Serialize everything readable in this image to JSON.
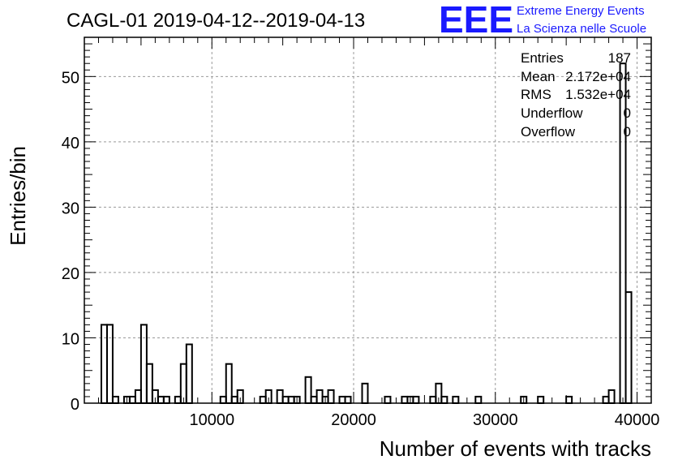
{
  "chart_data": {
    "type": "bar",
    "title": "CAGL-01 2019-04-12--2019-04-13",
    "xlabel": "Number of events with tracks",
    "ylabel": "Entries/bin",
    "xlim": [
      1000,
      41000
    ],
    "ylim": [
      0,
      56
    ],
    "bin_width": 400,
    "x_ticks": [
      10000,
      20000,
      30000,
      40000
    ],
    "y_ticks": [
      0,
      10,
      20,
      30,
      40,
      50
    ],
    "grid": true,
    "bins": [
      {
        "x": 2200,
        "y": 12
      },
      {
        "x": 2600,
        "y": 12
      },
      {
        "x": 3000,
        "y": 1
      },
      {
        "x": 3800,
        "y": 1
      },
      {
        "x": 4200,
        "y": 1
      },
      {
        "x": 4600,
        "y": 2
      },
      {
        "x": 5000,
        "y": 12
      },
      {
        "x": 5400,
        "y": 6
      },
      {
        "x": 5800,
        "y": 2
      },
      {
        "x": 6200,
        "y": 1
      },
      {
        "x": 6600,
        "y": 1
      },
      {
        "x": 7400,
        "y": 1
      },
      {
        "x": 7800,
        "y": 6
      },
      {
        "x": 8200,
        "y": 9
      },
      {
        "x": 10600,
        "y": 1
      },
      {
        "x": 11000,
        "y": 6
      },
      {
        "x": 11400,
        "y": 1
      },
      {
        "x": 11800,
        "y": 2
      },
      {
        "x": 13400,
        "y": 1
      },
      {
        "x": 13800,
        "y": 2
      },
      {
        "x": 14600,
        "y": 2
      },
      {
        "x": 15000,
        "y": 1
      },
      {
        "x": 15400,
        "y": 1
      },
      {
        "x": 15800,
        "y": 1
      },
      {
        "x": 16600,
        "y": 4
      },
      {
        "x": 17000,
        "y": 1
      },
      {
        "x": 17400,
        "y": 2
      },
      {
        "x": 17800,
        "y": 1
      },
      {
        "x": 18200,
        "y": 2
      },
      {
        "x": 19000,
        "y": 1
      },
      {
        "x": 19400,
        "y": 1
      },
      {
        "x": 20600,
        "y": 3
      },
      {
        "x": 22200,
        "y": 1
      },
      {
        "x": 23400,
        "y": 1
      },
      {
        "x": 23800,
        "y": 1
      },
      {
        "x": 24200,
        "y": 1
      },
      {
        "x": 25400,
        "y": 1
      },
      {
        "x": 25800,
        "y": 3
      },
      {
        "x": 26200,
        "y": 1
      },
      {
        "x": 27000,
        "y": 1
      },
      {
        "x": 28600,
        "y": 1
      },
      {
        "x": 31800,
        "y": 1
      },
      {
        "x": 33000,
        "y": 1
      },
      {
        "x": 35000,
        "y": 1
      },
      {
        "x": 37600,
        "y": 1
      },
      {
        "x": 38000,
        "y": 2
      },
      {
        "x": 38800,
        "y": 52
      },
      {
        "x": 39200,
        "y": 17
      }
    ]
  },
  "stats_box": {
    "rows": [
      {
        "label": "Entries",
        "value": "187"
      },
      {
        "label": "Mean",
        "value": "2.172e+04"
      },
      {
        "label": "RMS",
        "value": "1.532e+04"
      },
      {
        "label": "Underflow",
        "value": "0"
      },
      {
        "label": "Overflow",
        "value": "0"
      }
    ]
  },
  "logo": {
    "mark": "EEE",
    "line1": "Extreme Energy Events",
    "line2": "La Scienza nelle Scuole",
    "color": "#1a1aff"
  }
}
